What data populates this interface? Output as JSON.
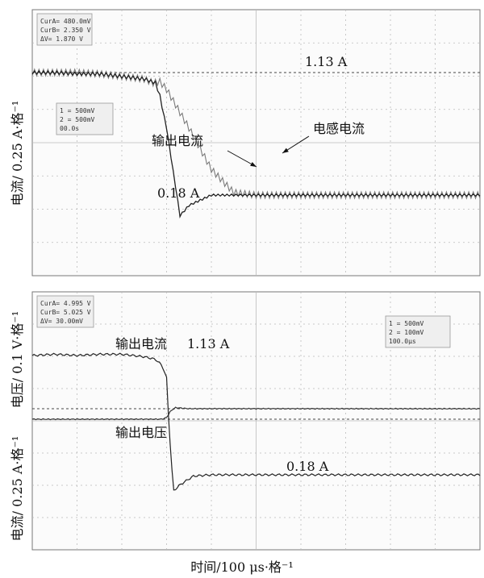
{
  "chart_data": [
    {
      "type": "line",
      "panel": "top",
      "ylabel": "电流/ 0.25 A·格⁻¹",
      "annotations": {
        "level_high": "1.13 A",
        "level_low": "0.18 A",
        "output_current": "输出电流",
        "inductor_current": "电感电流"
      },
      "readouts_top_left": [
        "CurA= 480.0mV",
        "CurB= 2.350 V",
        "ΔV= 1.870 V"
      ],
      "readouts_channels": [
        "1 = 500mV",
        "2 = 500mV",
        "00.0s"
      ],
      "x_divisions": 10,
      "y_divisions": 8,
      "series": [
        {
          "key": "output_current",
          "x": [
            0,
            0.5,
            1,
            1.5,
            2,
            2.5,
            2.75,
            2.85,
            3.0,
            3.3,
            3.5,
            4,
            5,
            6,
            7,
            8,
            9,
            10
          ],
          "y": [
            1.13,
            1.13,
            1.12,
            1.12,
            1.1,
            1.08,
            1.05,
            0.95,
            0.7,
            0.02,
            0.1,
            0.18,
            0.18,
            0.18,
            0.18,
            0.18,
            0.18,
            0.18
          ]
        },
        {
          "key": "inductor_current",
          "x": [
            0,
            0.5,
            1,
            1.5,
            2,
            2.5,
            2.7,
            2.85,
            3.0,
            3.5,
            4.0,
            4.5,
            5,
            6,
            7,
            8,
            9,
            10
          ],
          "y": [
            1.13,
            1.13,
            1.13,
            1.12,
            1.1,
            1.08,
            1.05,
            1.06,
            1.0,
            0.7,
            0.38,
            0.2,
            0.18,
            0.18,
            0.18,
            0.18,
            0.18,
            0.18
          ]
        }
      ]
    },
    {
      "type": "line",
      "panel": "bottom",
      "ylabel_upper": "电压/ 0.1 V·格⁻¹",
      "ylabel_lower": "电流/ 0.25 A·格⁻¹",
      "annotations": {
        "output_current_label": "输出电流",
        "level_high": "1.13 A",
        "output_voltage_label": "输出电压",
        "level_low": "0.18 A"
      },
      "readouts_top_left": [
        "CurA= 4.995 V",
        "CurB= 5.025 V",
        "ΔV= 30.00mV"
      ],
      "readouts_channels": [
        "1 = 500mV",
        "2 = 100mV",
        "100.0μs"
      ],
      "x_divisions": 10,
      "y_divisions": 8,
      "series": [
        {
          "key": "output_current",
          "x": [
            0,
            0.5,
            1,
            1.5,
            2,
            2.5,
            2.75,
            2.9,
            3.0,
            3.05,
            3.15,
            3.3,
            3.6,
            4,
            5,
            6,
            7,
            8,
            9,
            10
          ],
          "y": [
            1.13,
            1.14,
            1.13,
            1.14,
            1.14,
            1.12,
            1.1,
            1.05,
            0.95,
            0.6,
            0.05,
            0.1,
            0.17,
            0.18,
            0.18,
            0.18,
            0.18,
            0.18,
            0.18,
            0.18
          ]
        },
        {
          "key": "output_voltage",
          "x": [
            0,
            1,
            2,
            2.9,
            3.0,
            3.1,
            3.2,
            3.5,
            4,
            5,
            6,
            7,
            8,
            9,
            10
          ],
          "y": [
            4.995,
            4.995,
            4.995,
            4.995,
            5.0,
            5.02,
            5.028,
            5.025,
            5.025,
            5.025,
            5.025,
            5.025,
            5.025,
            5.025,
            5.025
          ]
        }
      ]
    }
  ],
  "xlabel": "时间/100 μs·格⁻¹"
}
